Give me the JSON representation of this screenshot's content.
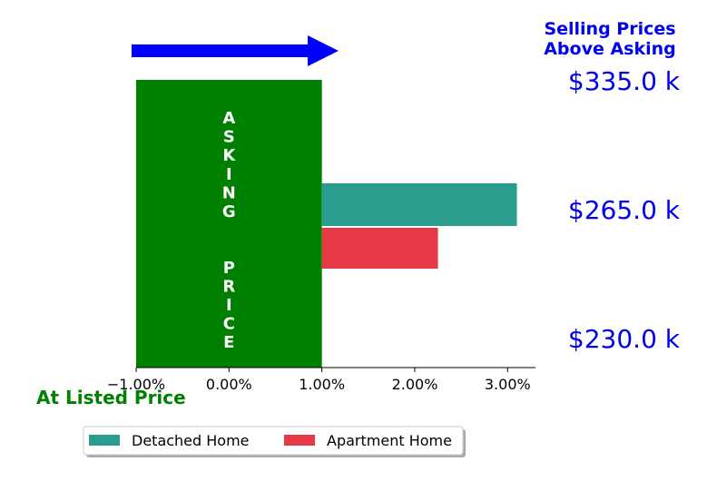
{
  "chart_data": {
    "type": "bar",
    "orientation": "horizontal",
    "x_unit": "percent",
    "xlim": [
      -1.0,
      3.3
    ],
    "xticks": [
      "−1.00%",
      "0.00%",
      "1.00%",
      "2.00%",
      "3.00%"
    ],
    "series": [
      {
        "name": "Detached Home",
        "values": [
          3.1
        ]
      },
      {
        "name": "Apartment Home",
        "values": [
          2.25
        ]
      }
    ],
    "asking_band": {
      "label": "ASKING  PRICE",
      "x_range": [
        -1.0,
        1.0
      ]
    },
    "price_labels": [
      "$335.0 k",
      "$265.0 k",
      "$230.0 k"
    ],
    "annotations": {
      "top_right": [
        "Selling Prices",
        "Above Asking"
      ],
      "bottom_left": "At Listed Price"
    },
    "legend_position": "bottom-left",
    "grid": false
  },
  "colors": {
    "detached": "#2a9d8f",
    "apartment": "#e63946",
    "asking": "#008000",
    "arrow": "#0000ff",
    "price_text": "#0000ee",
    "listed_text": "#008000"
  }
}
